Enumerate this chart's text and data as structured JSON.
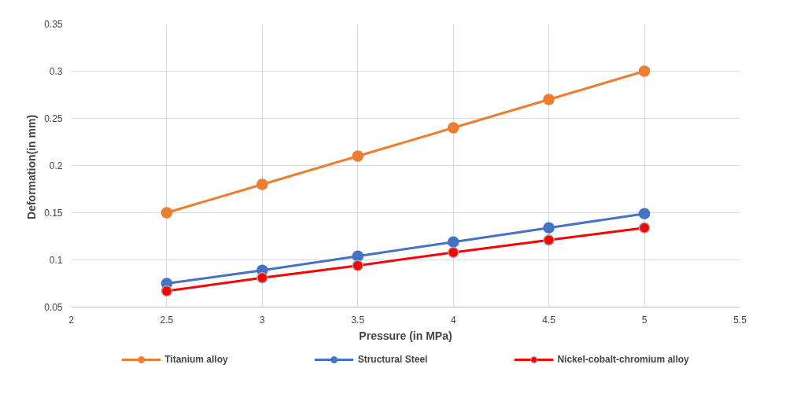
{
  "chart_data": {
    "type": "line",
    "xlabel": "Pressure (in MPa)",
    "ylabel": "Deformation(in  mm)",
    "x": [
      2.5,
      3,
      3.5,
      4,
      4.5,
      5
    ],
    "series": [
      {
        "name": "Titanium alloy",
        "color": "#ed7d31",
        "values": [
          0.15,
          0.18,
          0.21,
          0.24,
          0.27,
          0.3
        ]
      },
      {
        "name": "Structural Steel",
        "color": "#4472c4",
        "values": [
          0.075,
          0.089,
          0.104,
          0.119,
          0.134,
          0.149
        ]
      },
      {
        "name": "Nickel-cobalt-chromium alloy",
        "color": "#ff0000",
        "values": [
          0.067,
          0.081,
          0.094,
          0.108,
          0.121,
          0.134
        ]
      }
    ],
    "xlim": [
      2,
      5.5
    ],
    "xticks": [
      2,
      2.5,
      3,
      3.5,
      4,
      4.5,
      5,
      5.5
    ],
    "ylim": [
      0.05,
      0.35
    ],
    "yticks": [
      0.05,
      0.1,
      0.15,
      0.2,
      0.25,
      0.3,
      0.35
    ],
    "grid": true,
    "legend": "bottom",
    "marker": "circle",
    "line_style": "solid"
  }
}
